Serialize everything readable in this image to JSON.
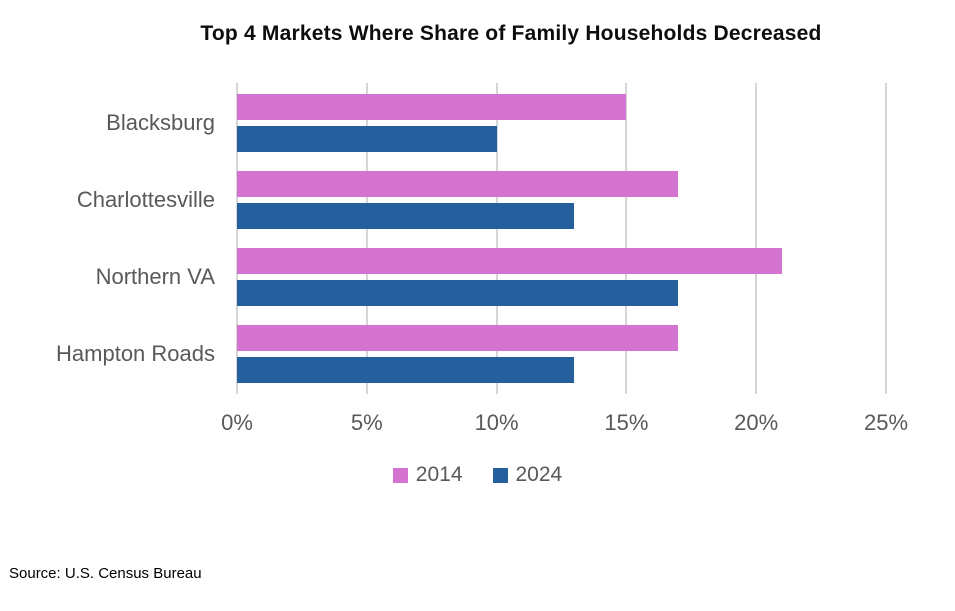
{
  "title": "Top 4 Markets Where Share of Family Households Decreased",
  "source": "Source: U.S. Census Bureau",
  "colors": {
    "series_2014": "#d474d0",
    "series_2024": "#265f9e",
    "gridline": "#d6d6d6",
    "axis_text": "#595959",
    "title_text": "#0d0d0d"
  },
  "chart_data": {
    "type": "bar",
    "orientation": "horizontal",
    "title": "Top 4 Markets Where Share of Family Households Decreased",
    "categories": [
      "Blacksburg",
      "Charlottesville",
      "Northern VA",
      "Hampton Roads"
    ],
    "series": [
      {
        "name": "2014",
        "color": "#d474d0",
        "values": [
          15,
          17,
          21,
          17
        ]
      },
      {
        "name": "2024",
        "color": "#265f9e",
        "values": [
          10,
          13,
          17,
          13
        ]
      }
    ],
    "xlim": [
      0,
      25
    ],
    "x_ticks": [
      {
        "value": 0,
        "label": "0%"
      },
      {
        "value": 5,
        "label": "5%"
      },
      {
        "value": 10,
        "label": "10%"
      },
      {
        "value": 15,
        "label": "15%"
      },
      {
        "value": 20,
        "label": "20%"
      },
      {
        "value": 25,
        "label": "25%"
      }
    ],
    "xlabel": "",
    "ylabel": "",
    "grid": true,
    "legend_position": "bottom"
  }
}
